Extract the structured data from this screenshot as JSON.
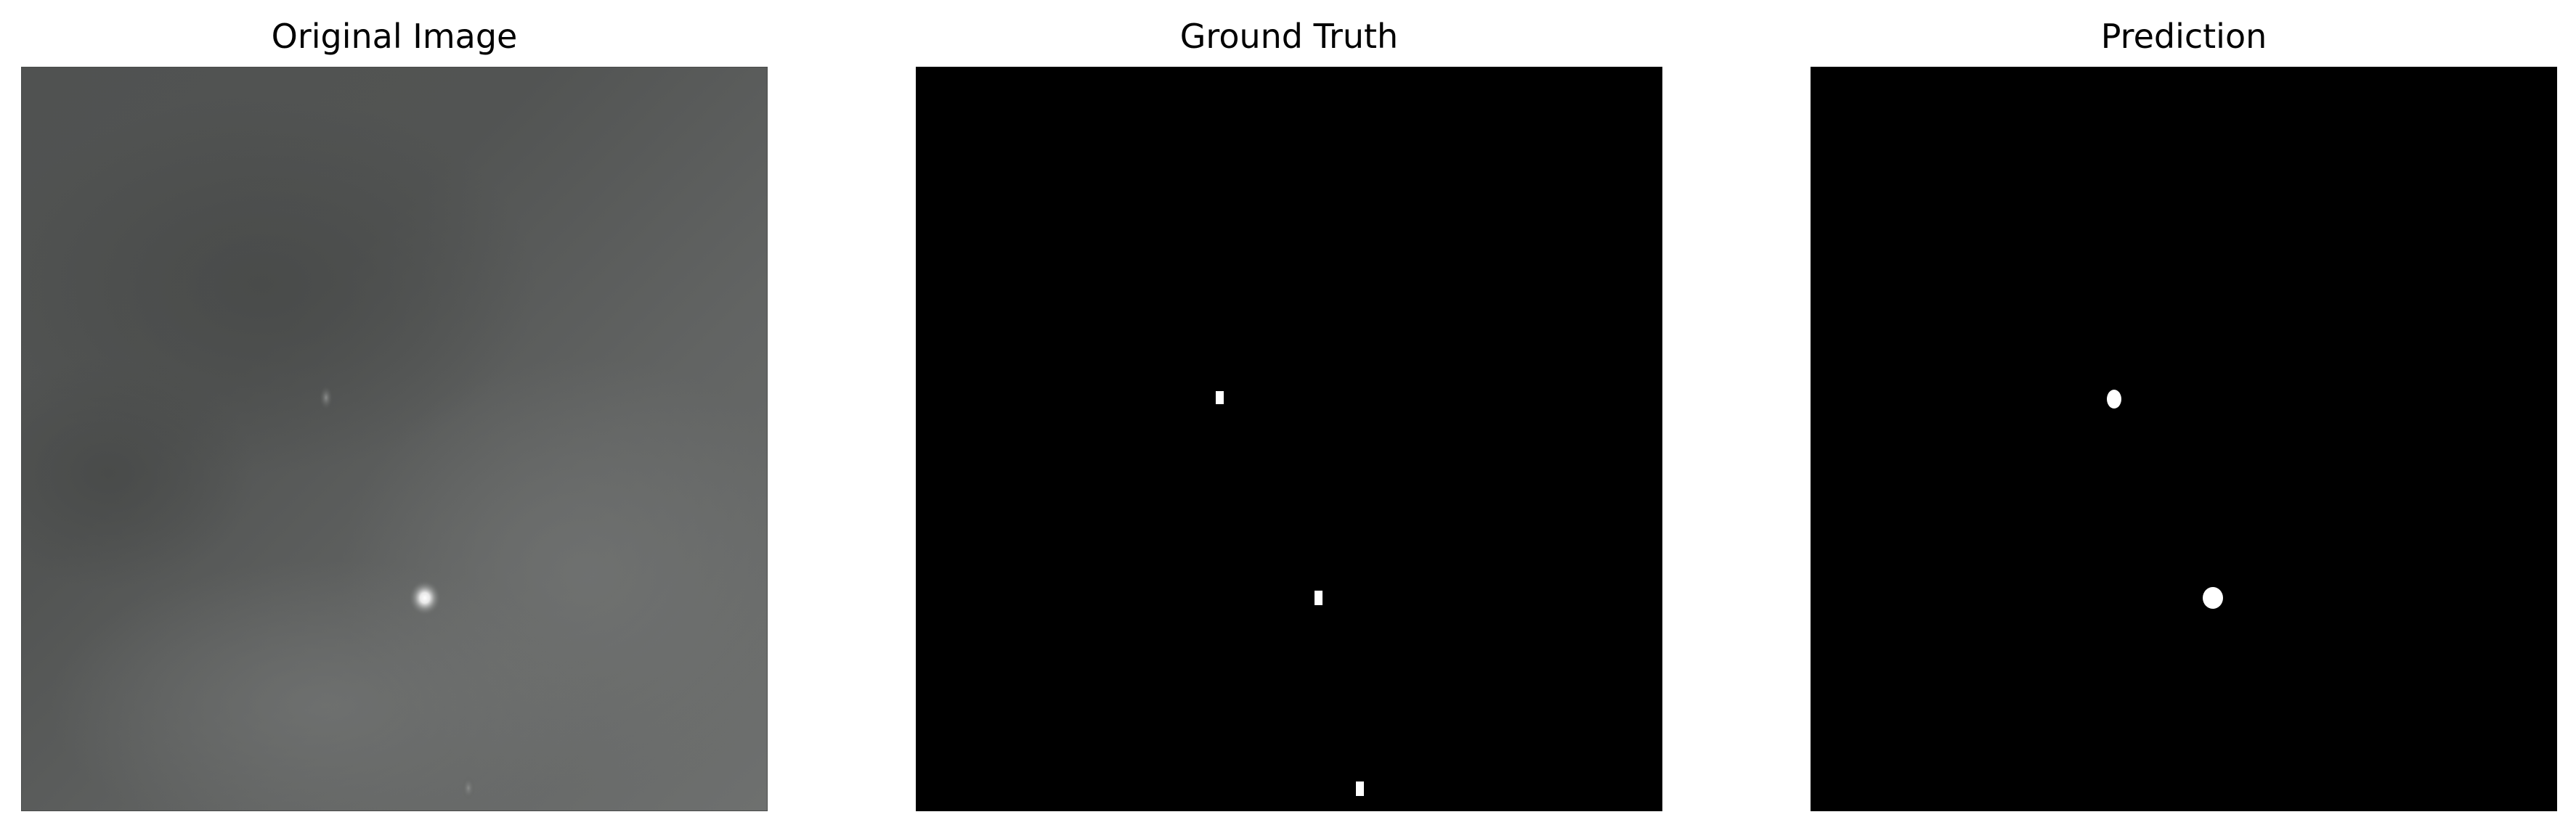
{
  "figure": {
    "panels": [
      {
        "title": "Original Image"
      },
      {
        "title": "Ground Truth"
      },
      {
        "title": "Prediction"
      }
    ],
    "colors": {
      "background": "#ffffff",
      "mask_background": "#000000",
      "mask_foreground": "#ffffff",
      "original_dark": "#4f5150",
      "original_light": "#6d6f6e"
    }
  }
}
